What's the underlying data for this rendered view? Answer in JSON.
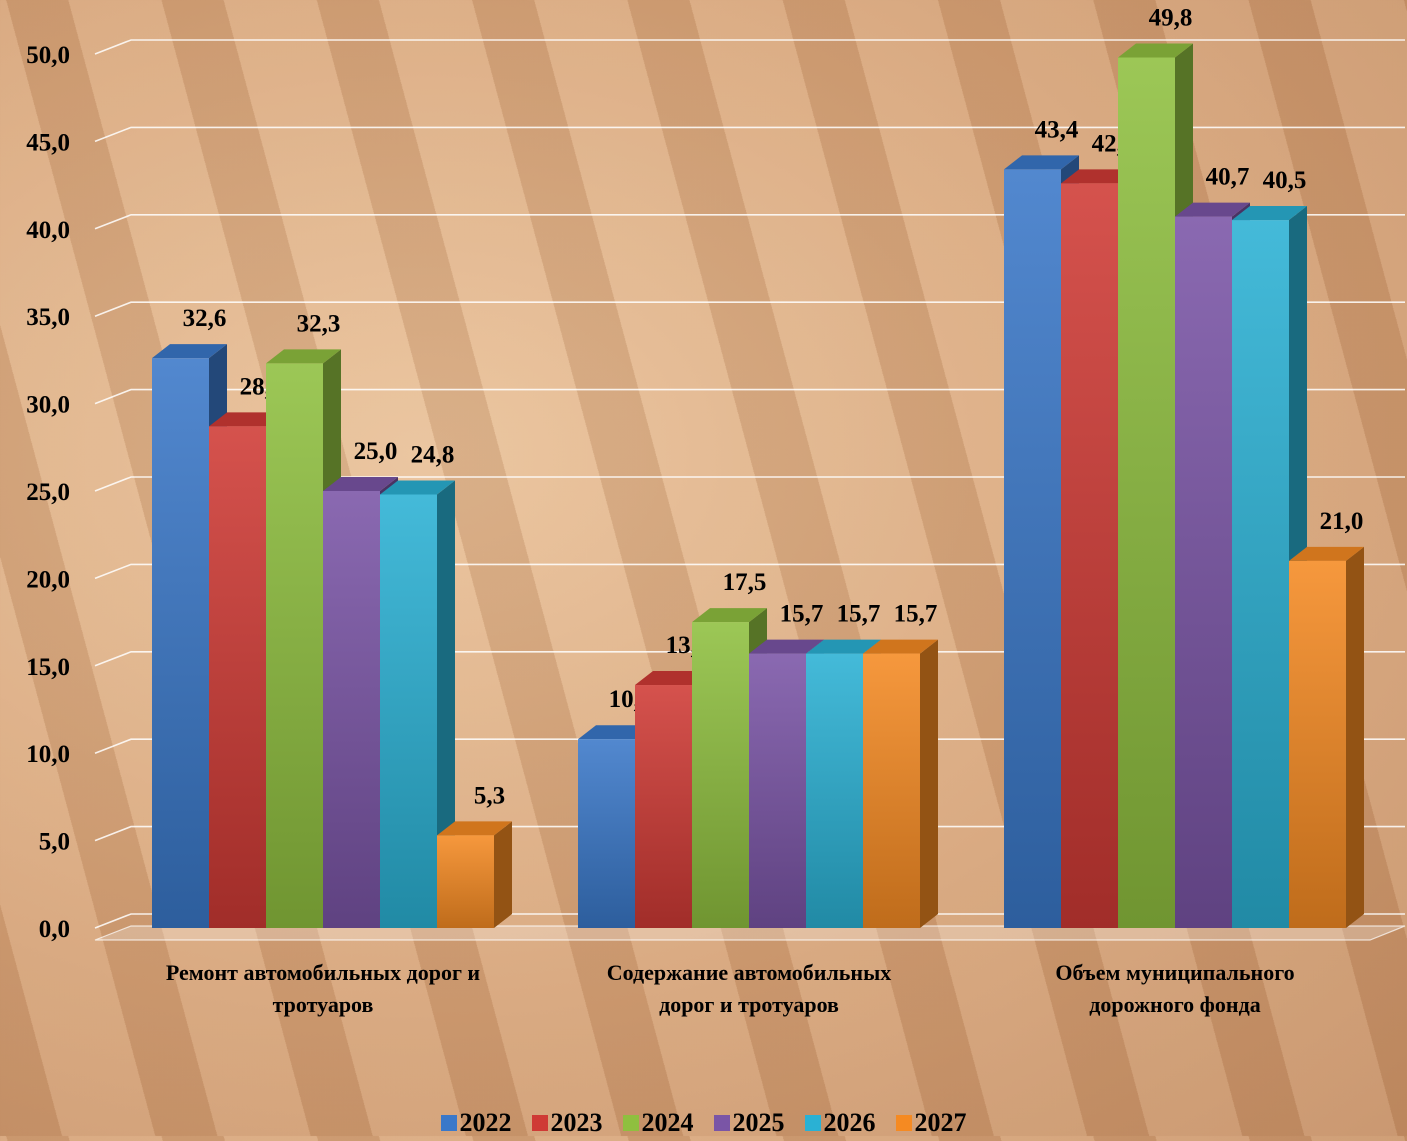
{
  "chart_data": {
    "type": "bar",
    "categories": [
      [
        "Ремонт автомобильных дорог и",
        "тротуаров"
      ],
      [
        "Содержание автомобильных",
        "дорог и тротуаров"
      ],
      [
        "Объем муниципального",
        "дорожного фонда"
      ]
    ],
    "series": [
      {
        "name": "2022",
        "color": "#3a78c9",
        "values": [
          32.6,
          10.8,
          43.4
        ]
      },
      {
        "name": "2023",
        "color": "#cf3a35",
        "values": [
          28.7,
          13.9,
          42.6
        ]
      },
      {
        "name": "2024",
        "color": "#8fbf3f",
        "values": [
          32.3,
          17.5,
          49.8
        ]
      },
      {
        "name": "2025",
        "color": "#7a55a6",
        "values": [
          25.0,
          15.7,
          40.7
        ]
      },
      {
        "name": "2026",
        "color": "#2ab1d4",
        "values": [
          24.8,
          15.7,
          40.5
        ]
      },
      {
        "name": "2027",
        "color": "#f58a22",
        "values": [
          5.3,
          15.7,
          21.0
        ]
      }
    ],
    "value_labels": [
      [
        "32,6",
        "10,8",
        "43,4"
      ],
      [
        "28,7",
        "13,9",
        "42,6"
      ],
      [
        "32,3",
        "17,5",
        "49,8"
      ],
      [
        "25,0",
        "15,7",
        "40,7"
      ],
      [
        "24,8",
        "15,7",
        "40,5"
      ],
      [
        "5,3",
        "15,7",
        "21,0"
      ]
    ],
    "y_ticks": [
      "0,0",
      "5,0",
      "10,0",
      "15,0",
      "20,0",
      "25,0",
      "30,0",
      "35,0",
      "40,0",
      "45,0",
      "50,0"
    ],
    "ylim": [
      0,
      50
    ],
    "grid": true,
    "style": "3d",
    "legend_position": "bottom"
  }
}
